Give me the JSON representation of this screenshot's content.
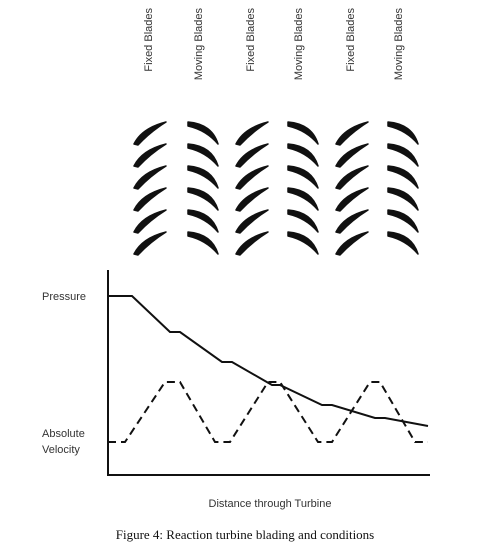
{
  "header": {
    "labels": [
      "Fixed Blades",
      "Moving Blades",
      "Fixed Blades",
      "Moving Blades",
      "Fixed Blades",
      "Moving Blades"
    ]
  },
  "graph": {
    "y_label_top": "Pressure",
    "y_label_bottom": [
      "Absolute",
      "Velocity"
    ],
    "x_label": "Distance through Turbine"
  },
  "caption": "Figure 4:  Reaction turbine blading and conditions"
}
